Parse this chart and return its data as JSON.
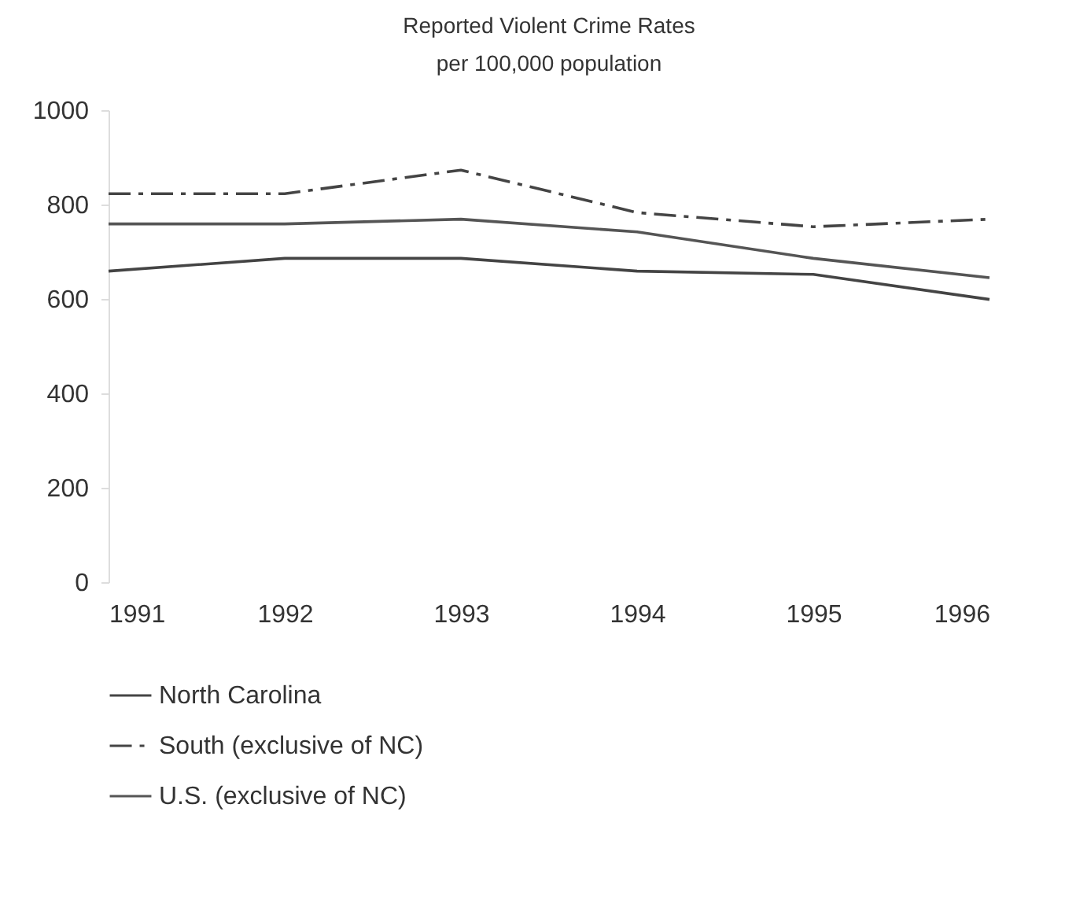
{
  "chart_data": {
    "type": "line",
    "title": "Reported Violent Crime Rates",
    "subtitle": "per 100,000 population",
    "x": [
      1991,
      1992,
      1993,
      1994,
      1995,
      1996
    ],
    "xlim": [
      1991,
      1996
    ],
    "xticks": [
      1991,
      1992,
      1993,
      1994,
      1995,
      1996
    ],
    "ylim": [
      0,
      1000
    ],
    "yticks": [
      0,
      200,
      400,
      600,
      800,
      1000
    ],
    "grid": false,
    "legend": "bottom",
    "marker": "none",
    "series": [
      {
        "name": "North Carolina",
        "color": "#444444",
        "line_style": "solid",
        "values": [
          659,
          686,
          686,
          659,
          652,
          599
        ]
      },
      {
        "name": "South (exclusive of NC)",
        "color": "#444444",
        "line_style": "dashdot",
        "values": [
          823,
          823,
          873,
          783,
          753,
          769
        ]
      },
      {
        "name": "U.S. (exclusive of NC)",
        "color": "#555555",
        "line_style": "solid",
        "values": [
          759,
          759,
          769,
          742,
          686,
          645
        ]
      }
    ]
  }
}
